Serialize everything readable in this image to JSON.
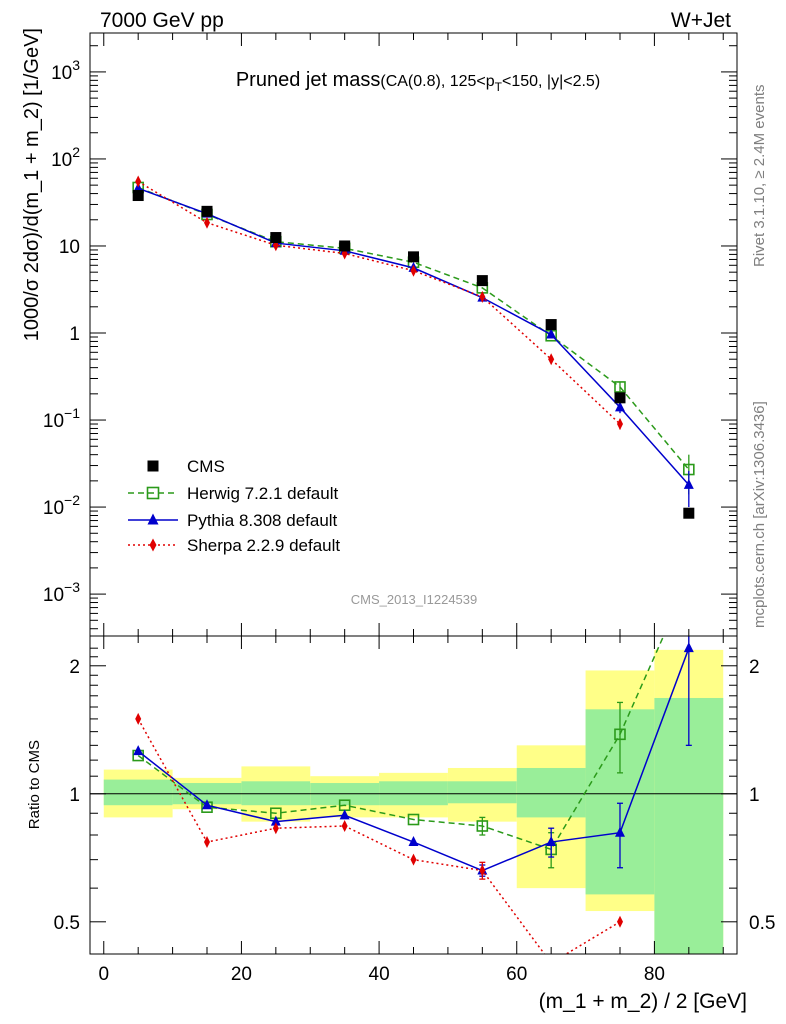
{
  "header": {
    "left": "7000 GeV pp",
    "right": "W+Jet"
  },
  "side": {
    "top": "Rivet 3.1.10, ≥ 2.4M events",
    "bottom": "mcplots.cern.ch [arXiv:1306.3436]"
  },
  "watermark": "CMS_2013_I1224539",
  "plot_title": {
    "main": "Pruned jet mass",
    "sub": "(CA(0.8), 125<p",
    "sub_idx": "T",
    "sub_end": "<150, |y|<2.5)"
  },
  "ylabel_top": "1000/σ 2dσ)/d(m_1 + m_2) [1/GeV]",
  "ylabel_bottom": "Ratio to CMS",
  "xlabel": "(m_1 + m_2) / 2 [GeV]",
  "x_ticks": [
    "0",
    "20",
    "40",
    "60",
    "80"
  ],
  "y_ticks_top": [
    {
      "v": 0.001,
      "base": "10",
      "exp": "−3"
    },
    {
      "v": 0.01,
      "base": "10",
      "exp": "−2"
    },
    {
      "v": 0.1,
      "base": "10",
      "exp": "−1"
    },
    {
      "v": 1,
      "base": "1",
      "exp": ""
    },
    {
      "v": 10,
      "base": "10",
      "exp": ""
    },
    {
      "v": 100,
      "base": "10",
      "exp": "2"
    },
    {
      "v": 1000,
      "base": "10",
      "exp": "3"
    }
  ],
  "y_ticks_ratio": [
    "0.5",
    "1",
    "2"
  ],
  "legend": [
    {
      "label": "CMS"
    },
    {
      "label": "Herwig 7.2.1 default"
    },
    {
      "label": "Pythia 8.308 default"
    },
    {
      "label": "Sherpa 2.2.9 default"
    }
  ],
  "colors": {
    "cms": "#000000",
    "herwig": "#2b9a1a",
    "pythia": "#0000cc",
    "sherpa": "#e00000",
    "band_green": "#99ee99",
    "band_yellow": "#ffff88"
  },
  "chart_data": {
    "type": "scatter",
    "x_range": [
      -2,
      92
    ],
    "y_range_top": [
      0.00033,
      2800
    ],
    "y_scale_top": "log",
    "y_range_ratio": [
      0.42,
      2.35
    ],
    "y_scale_ratio": "log",
    "x": [
      5,
      15,
      25,
      35,
      45,
      55,
      65,
      75,
      85
    ],
    "bin_edges": [
      0,
      10,
      20,
      30,
      40,
      50,
      60,
      70,
      80,
      90
    ],
    "cms": [
      38,
      25,
      12.5,
      10,
      7.5,
      4,
      1.25,
      0.18,
      0.0085
    ],
    "bands": {
      "green_lo": [
        0.94,
        0.945,
        0.94,
        0.94,
        0.94,
        0.95,
        0.88,
        0.58,
        0.42
      ],
      "green_hi": [
        1.08,
        1.06,
        1.07,
        1.06,
        1.07,
        1.07,
        1.15,
        1.58,
        1.68
      ],
      "yellow_lo": [
        0.88,
        0.92,
        0.86,
        0.88,
        0.88,
        0.86,
        0.6,
        0.53,
        0.42
      ],
      "yellow_hi": [
        1.14,
        1.09,
        1.16,
        1.1,
        1.12,
        1.15,
        1.3,
        1.95,
        2.18
      ]
    },
    "series": [
      {
        "name": "Herwig 7.2.1 default",
        "key": "herwig",
        "marker": "open-square",
        "dash": "6,4",
        "values": [
          47,
          23,
          11.2,
          9.4,
          6.5,
          3.3,
          0.93,
          0.24,
          0.027
        ],
        "ratio": [
          1.23,
          0.93,
          0.9,
          0.94,
          0.87,
          0.84,
          0.74,
          1.38,
          3.2
        ],
        "ratio_err": [
          0,
          0,
          0,
          0,
          0,
          0.04,
          0.07,
          0.26,
          0
        ],
        "val_err": [
          0,
          0,
          0,
          0,
          0,
          0,
          0,
          0.03,
          0.013
        ]
      },
      {
        "name": "Pythia 8.308 default",
        "key": "pythia",
        "marker": "triangle",
        "dash": "",
        "values": [
          46,
          23.5,
          10.8,
          8.8,
          5.6,
          2.55,
          0.96,
          0.14,
          0.018
        ],
        "ratio": [
          1.26,
          0.94,
          0.86,
          0.89,
          0.77,
          0.66,
          0.77,
          0.81,
          2.2
        ],
        "ratio_err": [
          0,
          0,
          0,
          0,
          0,
          0.02,
          0.06,
          0.14,
          0.9
        ],
        "val_err": [
          0,
          0,
          0,
          0,
          0,
          0,
          0,
          0.02,
          0.008
        ]
      },
      {
        "name": "Sherpa 2.2.9 default",
        "key": "sherpa",
        "marker": "diamond",
        "dash": "2,3",
        "values": [
          55,
          18.5,
          10.2,
          8.2,
          5.2,
          2.6,
          0.5,
          0.09,
          null
        ],
        "ratio": [
          1.5,
          0.77,
          0.83,
          0.84,
          0.7,
          0.66,
          0.4,
          0.5,
          null
        ],
        "ratio_err": [
          0,
          0,
          0,
          0,
          0,
          0.03,
          0,
          0,
          0
        ],
        "val_err": [
          0,
          0,
          0,
          0,
          0,
          0,
          0,
          0.012,
          0
        ]
      }
    ]
  }
}
